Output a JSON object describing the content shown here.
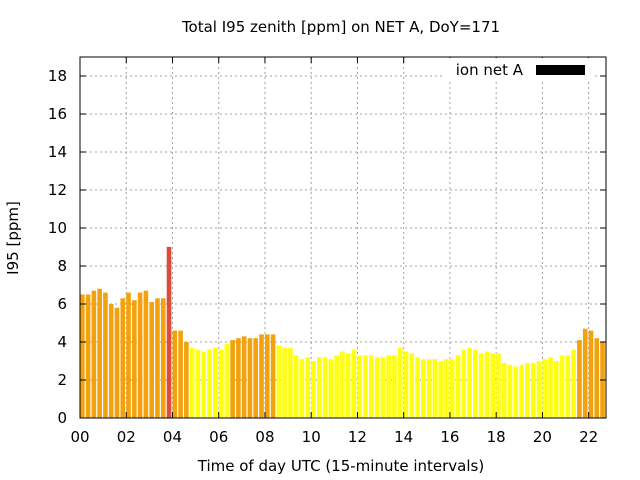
{
  "chart_data": {
    "type": "bar",
    "title": "Total I95 zenith [ppm] on NET A, DoY=171",
    "xlabel": "Time of day UTC (15-minute intervals)",
    "ylabel": "I95 [ppm]",
    "ylim": [
      0,
      19
    ],
    "xlim": [
      0,
      22.75
    ],
    "y_ticks": [
      "0",
      "2",
      "4",
      "6",
      "8",
      "10",
      "12",
      "14",
      "16",
      "18"
    ],
    "x_ticks": [
      "00",
      "02",
      "04",
      "06",
      "08",
      "10",
      "12",
      "14",
      "16",
      "18",
      "20",
      "22"
    ],
    "grid": true,
    "legend": {
      "position": "top-right",
      "label": "ion net A",
      "color": "#000000"
    },
    "interval_hours": 0.25,
    "values": [
      6.5,
      6.5,
      6.7,
      6.8,
      6.6,
      6.0,
      5.8,
      6.3,
      6.6,
      6.2,
      6.6,
      6.7,
      6.1,
      6.3,
      6.3,
      9.0,
      4.6,
      4.6,
      4.0,
      3.7,
      3.6,
      3.5,
      3.6,
      3.7,
      3.6,
      3.9,
      4.1,
      4.2,
      4.3,
      4.2,
      4.2,
      4.4,
      4.4,
      4.4,
      3.8,
      3.7,
      3.7,
      3.3,
      3.1,
      3.2,
      3.0,
      3.2,
      3.2,
      3.1,
      3.3,
      3.5,
      3.4,
      3.6,
      3.3,
      3.3,
      3.3,
      3.2,
      3.2,
      3.3,
      3.3,
      3.7,
      3.5,
      3.4,
      3.2,
      3.1,
      3.1,
      3.1,
      3.0,
      3.1,
      3.1,
      3.3,
      3.6,
      3.7,
      3.6,
      3.4,
      3.5,
      3.4,
      3.4,
      2.9,
      2.8,
      2.7,
      2.8,
      2.9,
      2.9,
      3.0,
      3.1,
      3.2,
      3.0,
      3.3,
      3.3,
      3.6,
      4.1,
      4.7,
      4.6,
      4.2,
      4.0
    ],
    "colors": {
      "high": "#e04a3a",
      "medium": "#f2a20e",
      "low": "#ffff14"
    },
    "color_classes": [
      "medium",
      "medium",
      "medium",
      "medium",
      "medium",
      "medium",
      "medium",
      "medium",
      "medium",
      "medium",
      "medium",
      "medium",
      "medium",
      "medium",
      "medium",
      "high",
      "medium",
      "medium",
      "medium",
      "low",
      "low",
      "low",
      "low",
      "low",
      "low",
      "low",
      "medium",
      "medium",
      "medium",
      "medium",
      "medium",
      "medium",
      "medium",
      "medium",
      "low",
      "low",
      "low",
      "low",
      "low",
      "low",
      "low",
      "low",
      "low",
      "low",
      "low",
      "low",
      "low",
      "low",
      "low",
      "low",
      "low",
      "low",
      "low",
      "low",
      "low",
      "low",
      "low",
      "low",
      "low",
      "low",
      "low",
      "low",
      "low",
      "low",
      "low",
      "low",
      "low",
      "low",
      "low",
      "low",
      "low",
      "low",
      "low",
      "low",
      "low",
      "low",
      "low",
      "low",
      "low",
      "low",
      "low",
      "low",
      "low",
      "low",
      "low",
      "low",
      "medium",
      "medium",
      "medium",
      "medium",
      "medium"
    ]
  }
}
